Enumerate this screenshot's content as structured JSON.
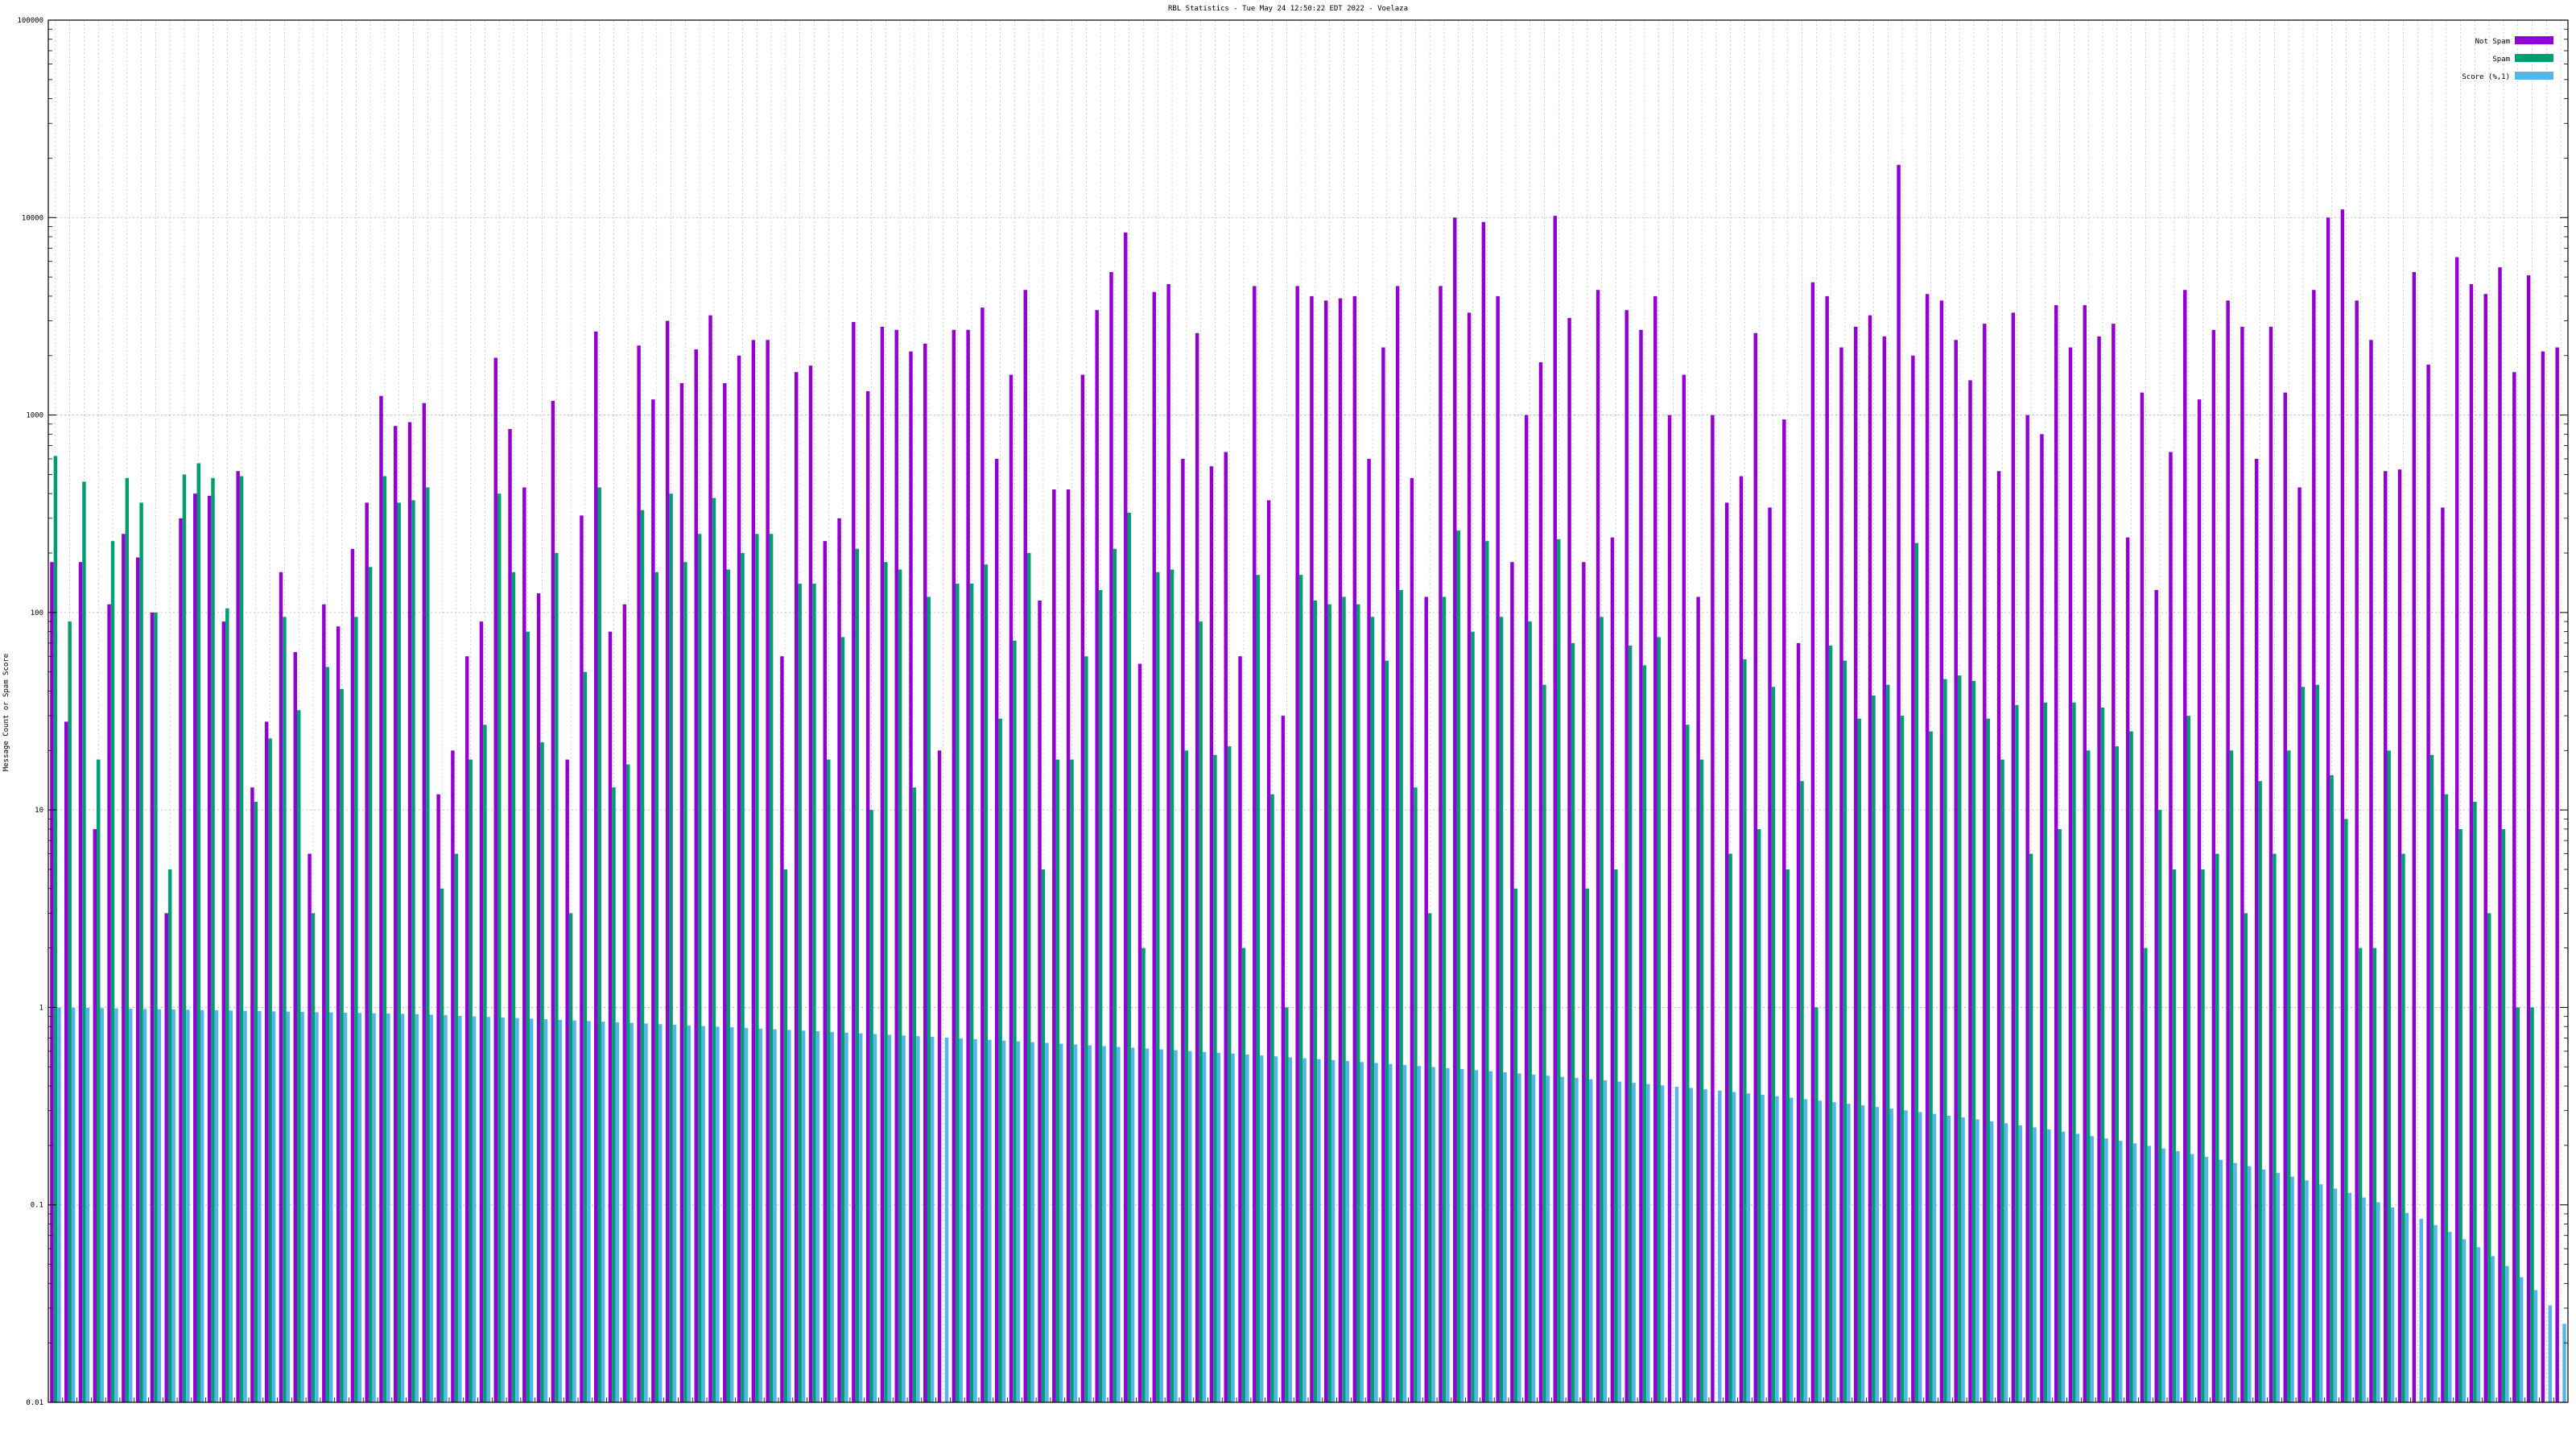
{
  "chart_data": {
    "type": "bar",
    "title": "RBL Statistics - Tue May 24 12:50:22 EDT 2022 - Voelaza",
    "xlabel": "",
    "ylabel": "Message Count or Spam Score",
    "yscale": "log",
    "ylim": [
      0.01,
      100000
    ],
    "yticks": [
      "0.01",
      "0.1",
      "1",
      "10",
      "100",
      "1000",
      "10000",
      "100000"
    ],
    "grid": true,
    "legend_position": "top-right",
    "colors": {
      "not_spam": "#9400d3",
      "spam": "#009e73",
      "score": "#56b4e9"
    },
    "series": [
      {
        "name": "Not Spam",
        "values": [
          180,
          28,
          180,
          8,
          110,
          250,
          190,
          100,
          3,
          300,
          400,
          390,
          90,
          520,
          13,
          28,
          160,
          63,
          6,
          110,
          85,
          210,
          360,
          1250,
          880,
          920,
          1150,
          12,
          20,
          60,
          90,
          1950,
          850,
          430,
          125,
          1180,
          18,
          310,
          2650,
          80,
          110,
          2250,
          1200,
          3000,
          1450,
          2150,
          3200,
          1450,
          2000,
          2400,
          2400,
          60,
          1650,
          1780,
          230,
          300,
          2960,
          1320,
          2800,
          2700,
          2100,
          2300,
          20,
          2700,
          2700,
          3500,
          600,
          1600,
          4300,
          115,
          420,
          420,
          1600,
          3400,
          5300,
          8400,
          55,
          4200,
          4600,
          600,
          2600,
          550,
          650,
          60,
          4500,
          370,
          30,
          4500,
          4000,
          3800,
          3900,
          4000,
          600,
          2200,
          4500,
          480,
          120,
          4500,
          10000,
          3300,
          9500,
          4000,
          180,
          1000,
          1850,
          10200,
          3100,
          180,
          4300,
          240,
          3400,
          2700,
          4000,
          1000,
          1600,
          120,
          1000,
          360,
          490,
          2600,
          340,
          950,
          70,
          4700,
          4000,
          2200,
          2800,
          3200,
          2500,
          18500,
          2000,
          4100,
          3800,
          2400,
          1500,
          2900,
          520,
          3300,
          1000,
          800,
          3600,
          2200,
          3600,
          2500,
          2900,
          240,
          1300,
          130,
          650,
          4300,
          1200,
          2700,
          3800,
          2800,
          600,
          2800,
          1300,
          430,
          4300,
          10000,
          11000,
          3800,
          2400,
          520,
          530,
          5300,
          1800,
          340,
          6300,
          4600,
          4100,
          5600,
          1650,
          5100,
          2100,
          2200
        ]
      },
      {
        "name": "Spam",
        "values": [
          620,
          90,
          460,
          18,
          230,
          480,
          360,
          100,
          5,
          500,
          570,
          480,
          105,
          490,
          11,
          23,
          95,
          32,
          3,
          53,
          41,
          95,
          170,
          490,
          360,
          370,
          430,
          4,
          6,
          18,
          27,
          400,
          160,
          80,
          22,
          200,
          3,
          50,
          430,
          13,
          17,
          330,
          160,
          400,
          180,
          250,
          380,
          165,
          200,
          250,
          250,
          5,
          140,
          140,
          18,
          75,
          210,
          10,
          180,
          165,
          13,
          120,
          0,
          140,
          140,
          175,
          29,
          72,
          200,
          5,
          18,
          18,
          60,
          130,
          210,
          320,
          2,
          160,
          165,
          20,
          90,
          19,
          21,
          2,
          155,
          12,
          1,
          155,
          115,
          110,
          120,
          110,
          95,
          57,
          130,
          13,
          3,
          120,
          260,
          80,
          230,
          95,
          4,
          90,
          43,
          235,
          70,
          4,
          95,
          5,
          68,
          54,
          75,
          0,
          27,
          18,
          0,
          6,
          58,
          8,
          42,
          5,
          14,
          1,
          68,
          57,
          29,
          38,
          43,
          30,
          225,
          25,
          46,
          48,
          45,
          29,
          18,
          34,
          6,
          35,
          8,
          35,
          20,
          33,
          21,
          25,
          2,
          10,
          5,
          30,
          5,
          6,
          20,
          3,
          14,
          6,
          20,
          42,
          43,
          15,
          9,
          2,
          2,
          20,
          6,
          0,
          19,
          12,
          8,
          11,
          3,
          8,
          1,
          1
        ]
      },
      {
        "name": "Score (%,1)",
        "values": [
          0.999,
          0.997,
          0.994,
          0.991,
          0.988,
          0.985,
          0.982,
          0.979,
          0.976,
          0.973,
          0.97,
          0.967,
          0.964,
          0.961,
          0.958,
          0.955,
          0.952,
          0.949,
          0.946,
          0.943,
          0.94,
          0.937,
          0.934,
          0.931,
          0.928,
          0.925,
          0.919,
          0.913,
          0.907,
          0.901,
          0.895,
          0.889,
          0.883,
          0.877,
          0.871,
          0.865,
          0.859,
          0.853,
          0.847,
          0.841,
          0.835,
          0.829,
          0.823,
          0.817,
          0.811,
          0.805,
          0.799,
          0.793,
          0.787,
          0.781,
          0.775,
          0.769,
          0.763,
          0.757,
          0.751,
          0.745,
          0.739,
          0.733,
          0.727,
          0.721,
          0.715,
          0.709,
          0.703,
          0.697,
          0.691,
          0.685,
          0.679,
          0.673,
          0.667,
          0.661,
          0.655,
          0.649,
          0.643,
          0.637,
          0.631,
          0.625,
          0.619,
          0.613,
          0.607,
          0.601,
          0.595,
          0.589,
          0.583,
          0.577,
          0.571,
          0.565,
          0.559,
          0.553,
          0.547,
          0.541,
          0.535,
          0.529,
          0.523,
          0.517,
          0.511,
          0.505,
          0.499,
          0.493,
          0.487,
          0.481,
          0.475,
          0.469,
          0.463,
          0.457,
          0.451,
          0.445,
          0.439,
          0.433,
          0.427,
          0.421,
          0.415,
          0.409,
          0.403,
          0.397,
          0.391,
          0.385,
          0.379,
          0.373,
          0.367,
          0.361,
          0.355,
          0.349,
          0.343,
          0.337,
          0.331,
          0.325,
          0.319,
          0.313,
          0.307,
          0.301,
          0.295,
          0.289,
          0.283,
          0.277,
          0.271,
          0.265,
          0.259,
          0.253,
          0.247,
          0.241,
          0.235,
          0.229,
          0.223,
          0.217,
          0.211,
          0.205,
          0.199,
          0.193,
          0.187,
          0.181,
          0.175,
          0.169,
          0.163,
          0.157,
          0.151,
          0.145,
          0.139,
          0.133,
          0.127,
          0.121,
          0.115,
          0.109,
          0.103,
          0.097,
          0.091,
          0.085,
          0.079,
          0.073,
          0.067,
          0.061,
          0.055,
          0.049,
          0.043,
          0.037,
          0.031,
          0.025,
          0.019,
          0.016,
          0.013,
          0.011
        ]
      }
    ]
  }
}
